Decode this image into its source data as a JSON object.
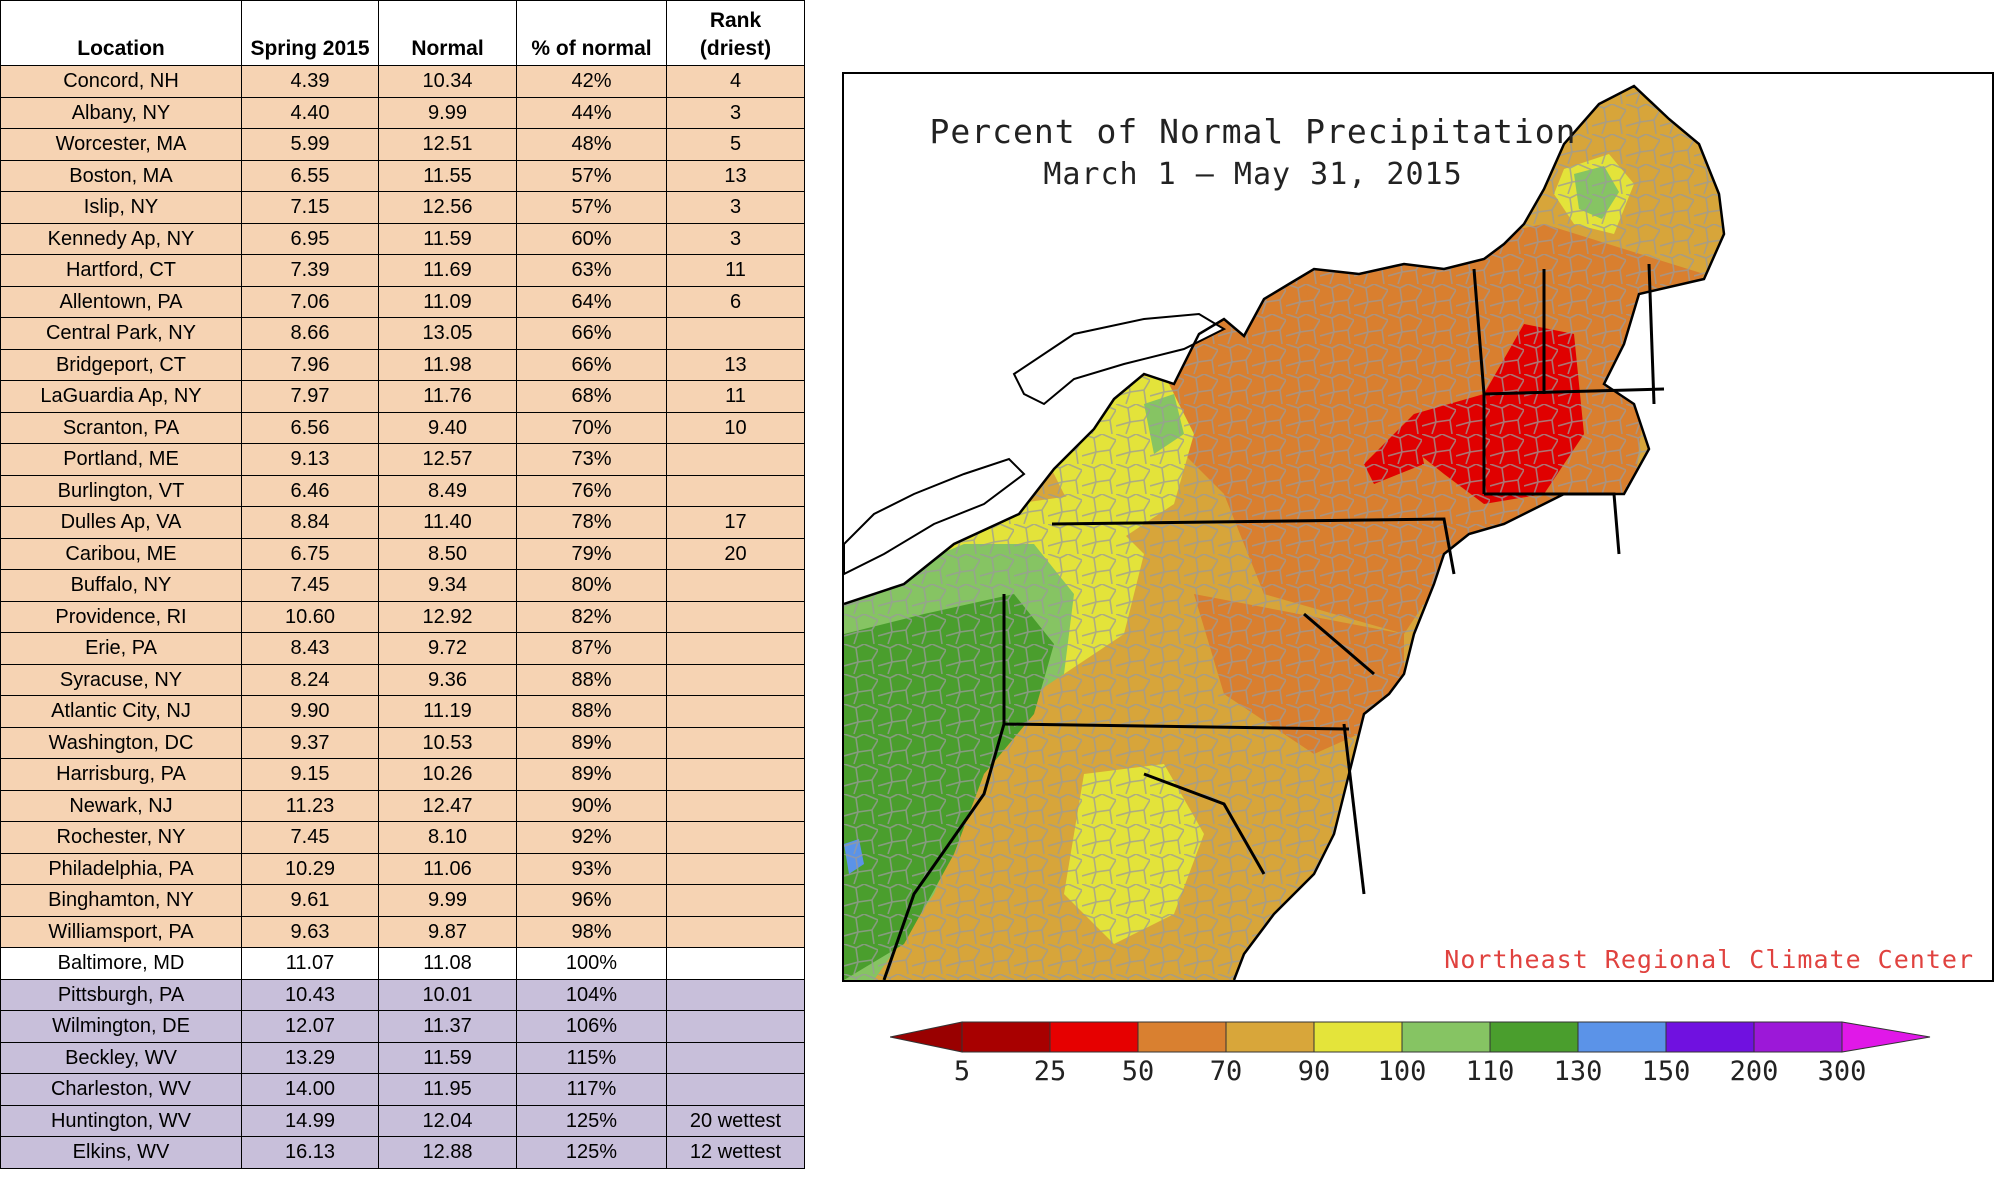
{
  "table": {
    "headers": {
      "location": "Location",
      "spring": "Spring 2015",
      "normal": "Normal",
      "pct": "% of normal",
      "rank_line1": "Rank",
      "rank_line2": "(driest)"
    },
    "rows": [
      {
        "location": "Concord, NH",
        "spring": "4.39",
        "normal": "10.34",
        "pct": "42%",
        "rank": "4",
        "group": "dry"
      },
      {
        "location": "Albany, NY",
        "spring": "4.40",
        "normal": "9.99",
        "pct": "44%",
        "rank": "3",
        "group": "dry"
      },
      {
        "location": "Worcester, MA",
        "spring": "5.99",
        "normal": "12.51",
        "pct": "48%",
        "rank": "5",
        "group": "dry"
      },
      {
        "location": "Boston, MA",
        "spring": "6.55",
        "normal": "11.55",
        "pct": "57%",
        "rank": "13",
        "group": "dry"
      },
      {
        "location": "Islip, NY",
        "spring": "7.15",
        "normal": "12.56",
        "pct": "57%",
        "rank": "3",
        "group": "dry"
      },
      {
        "location": "Kennedy Ap, NY",
        "spring": "6.95",
        "normal": "11.59",
        "pct": "60%",
        "rank": "3",
        "group": "dry"
      },
      {
        "location": "Hartford, CT",
        "spring": "7.39",
        "normal": "11.69",
        "pct": "63%",
        "rank": "11",
        "group": "dry"
      },
      {
        "location": "Allentown, PA",
        "spring": "7.06",
        "normal": "11.09",
        "pct": "64%",
        "rank": "6",
        "group": "dry"
      },
      {
        "location": "Central Park, NY",
        "spring": "8.66",
        "normal": "13.05",
        "pct": "66%",
        "rank": "",
        "group": "dry"
      },
      {
        "location": "Bridgeport, CT",
        "spring": "7.96",
        "normal": "11.98",
        "pct": "66%",
        "rank": "13",
        "group": "dry"
      },
      {
        "location": "LaGuardia Ap, NY",
        "spring": "7.97",
        "normal": "11.76",
        "pct": "68%",
        "rank": "11",
        "group": "dry"
      },
      {
        "location": "Scranton, PA",
        "spring": "6.56",
        "normal": "9.40",
        "pct": "70%",
        "rank": "10",
        "group": "dry"
      },
      {
        "location": "Portland, ME",
        "spring": "9.13",
        "normal": "12.57",
        "pct": "73%",
        "rank": "",
        "group": "dry"
      },
      {
        "location": "Burlington, VT",
        "spring": "6.46",
        "normal": "8.49",
        "pct": "76%",
        "rank": "",
        "group": "dry"
      },
      {
        "location": "Dulles Ap, VA",
        "spring": "8.84",
        "normal": "11.40",
        "pct": "78%",
        "rank": "17",
        "group": "dry"
      },
      {
        "location": "Caribou, ME",
        "spring": "6.75",
        "normal": "8.50",
        "pct": "79%",
        "rank": "20",
        "group": "dry"
      },
      {
        "location": "Buffalo, NY",
        "spring": "7.45",
        "normal": "9.34",
        "pct": "80%",
        "rank": "",
        "group": "dry"
      },
      {
        "location": "Providence, RI",
        "spring": "10.60",
        "normal": "12.92",
        "pct": "82%",
        "rank": "",
        "group": "dry"
      },
      {
        "location": "Erie, PA",
        "spring": "8.43",
        "normal": "9.72",
        "pct": "87%",
        "rank": "",
        "group": "dry"
      },
      {
        "location": "Syracuse, NY",
        "spring": "8.24",
        "normal": "9.36",
        "pct": "88%",
        "rank": "",
        "group": "dry"
      },
      {
        "location": "Atlantic City, NJ",
        "spring": "9.90",
        "normal": "11.19",
        "pct": "88%",
        "rank": "",
        "group": "dry"
      },
      {
        "location": "Washington, DC",
        "spring": "9.37",
        "normal": "10.53",
        "pct": "89%",
        "rank": "",
        "group": "dry"
      },
      {
        "location": "Harrisburg, PA",
        "spring": "9.15",
        "normal": "10.26",
        "pct": "89%",
        "rank": "",
        "group": "dry"
      },
      {
        "location": "Newark, NJ",
        "spring": "11.23",
        "normal": "12.47",
        "pct": "90%",
        "rank": "",
        "group": "dry"
      },
      {
        "location": "Rochester, NY",
        "spring": "7.45",
        "normal": "8.10",
        "pct": "92%",
        "rank": "",
        "group": "dry"
      },
      {
        "location": "Philadelphia, PA",
        "spring": "10.29",
        "normal": "11.06",
        "pct": "93%",
        "rank": "",
        "group": "dry"
      },
      {
        "location": "Binghamton, NY",
        "spring": "9.61",
        "normal": "9.99",
        "pct": "96%",
        "rank": "",
        "group": "dry"
      },
      {
        "location": "Williamsport, PA",
        "spring": "9.63",
        "normal": "9.87",
        "pct": "98%",
        "rank": "",
        "group": "dry"
      },
      {
        "location": "Baltimore, MD",
        "spring": "11.07",
        "normal": "11.08",
        "pct": "100%",
        "rank": "",
        "group": "mid"
      },
      {
        "location": "Pittsburgh, PA",
        "spring": "10.43",
        "normal": "10.01",
        "pct": "104%",
        "rank": "",
        "group": "wet"
      },
      {
        "location": "Wilmington, DE",
        "spring": "12.07",
        "normal": "11.37",
        "pct": "106%",
        "rank": "",
        "group": "wet"
      },
      {
        "location": "Beckley, WV",
        "spring": "13.29",
        "normal": "11.59",
        "pct": "115%",
        "rank": "",
        "group": "wet"
      },
      {
        "location": "Charleston, WV",
        "spring": "14.00",
        "normal": "11.95",
        "pct": "117%",
        "rank": "",
        "group": "wet"
      },
      {
        "location": "Huntington, WV",
        "spring": "14.99",
        "normal": "12.04",
        "pct": "125%",
        "rank": "20 wettest",
        "group": "wet"
      },
      {
        "location": "Elkins, WV",
        "spring": "16.13",
        "normal": "12.88",
        "pct": "125%",
        "rank": "12 wettest",
        "group": "wet"
      }
    ]
  },
  "map": {
    "title_line1": "Percent of Normal Precipitation",
    "title_line2": "March 1 — May 31, 2015",
    "credit": "Northeast Regional Climate Center",
    "colors": {
      "dark_red": "#a40000",
      "red": "#e00000",
      "orange": "#d97f2f",
      "tan": "#d7a53a",
      "yellow": "#e3e33a",
      "light_green": "#86c463",
      "green": "#4a9e2d",
      "blue": "#5b93e8",
      "background": "#ffffff",
      "county_lines": "#9a9a9a",
      "state_lines": "#000000"
    }
  },
  "legend": {
    "labels": [
      "5",
      "25",
      "50",
      "70",
      "90",
      "100",
      "110",
      "130",
      "150",
      "200",
      "300"
    ],
    "colors": [
      "#990000",
      "#a80000",
      "#e60000",
      "#d98030",
      "#d8a63a",
      "#e4e43a",
      "#86c463",
      "#4a9e2d",
      "#5b93e8",
      "#7011e0",
      "#9c18d8",
      "#e018e8"
    ]
  }
}
